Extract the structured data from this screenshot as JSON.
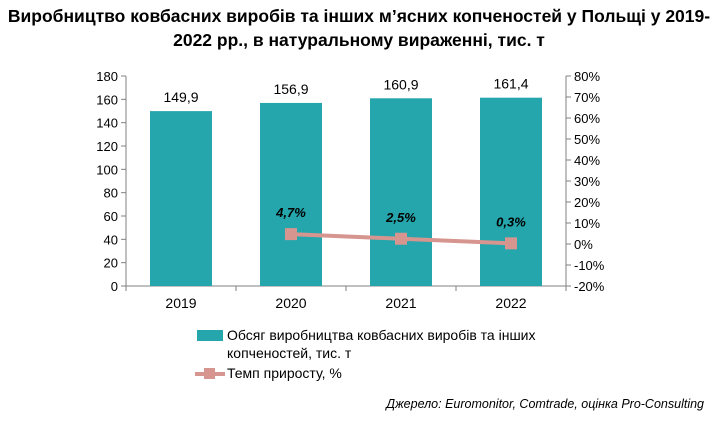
{
  "chart_data": {
    "type": "bar",
    "title": "Виробництво ковбасних виробів та інших м’ясних копченостей у Польщі у 2019-2022 рр., в натуральному вираженні, тис. т",
    "categories": [
      "2019",
      "2020",
      "2021",
      "2022"
    ],
    "series": [
      {
        "name": "Обсяг виробництва ковбасних виробів та інших копченостей, тис. т",
        "type": "bar",
        "axis": "left",
        "values": [
          149.9,
          156.9,
          160.9,
          161.4
        ],
        "labels": [
          "149,9",
          "156,9",
          "160,9",
          "161,4"
        ],
        "color": "#24A6AC"
      },
      {
        "name": "Темп приросту, %",
        "type": "line",
        "axis": "right",
        "values": [
          null,
          4.7,
          2.5,
          0.3
        ],
        "labels": [
          "",
          "4,7%",
          "2,5%",
          "0,3%"
        ],
        "color": "#D6958E"
      }
    ],
    "y_left": {
      "min": 0,
      "max": 180,
      "step": 20,
      "ticks": [
        "0",
        "20",
        "40",
        "60",
        "80",
        "100",
        "120",
        "140",
        "160",
        "180"
      ]
    },
    "y_right": {
      "min": -20,
      "max": 80,
      "step": 10,
      "ticks": [
        "-20%",
        "-10%",
        "0%",
        "10%",
        "20%",
        "30%",
        "40%",
        "50%",
        "60%",
        "70%",
        "80%"
      ]
    },
    "grid": false,
    "legend_position": "bottom"
  },
  "source": "Джерело: Euromonitor, Comtrade, оцінка Pro-Consulting"
}
